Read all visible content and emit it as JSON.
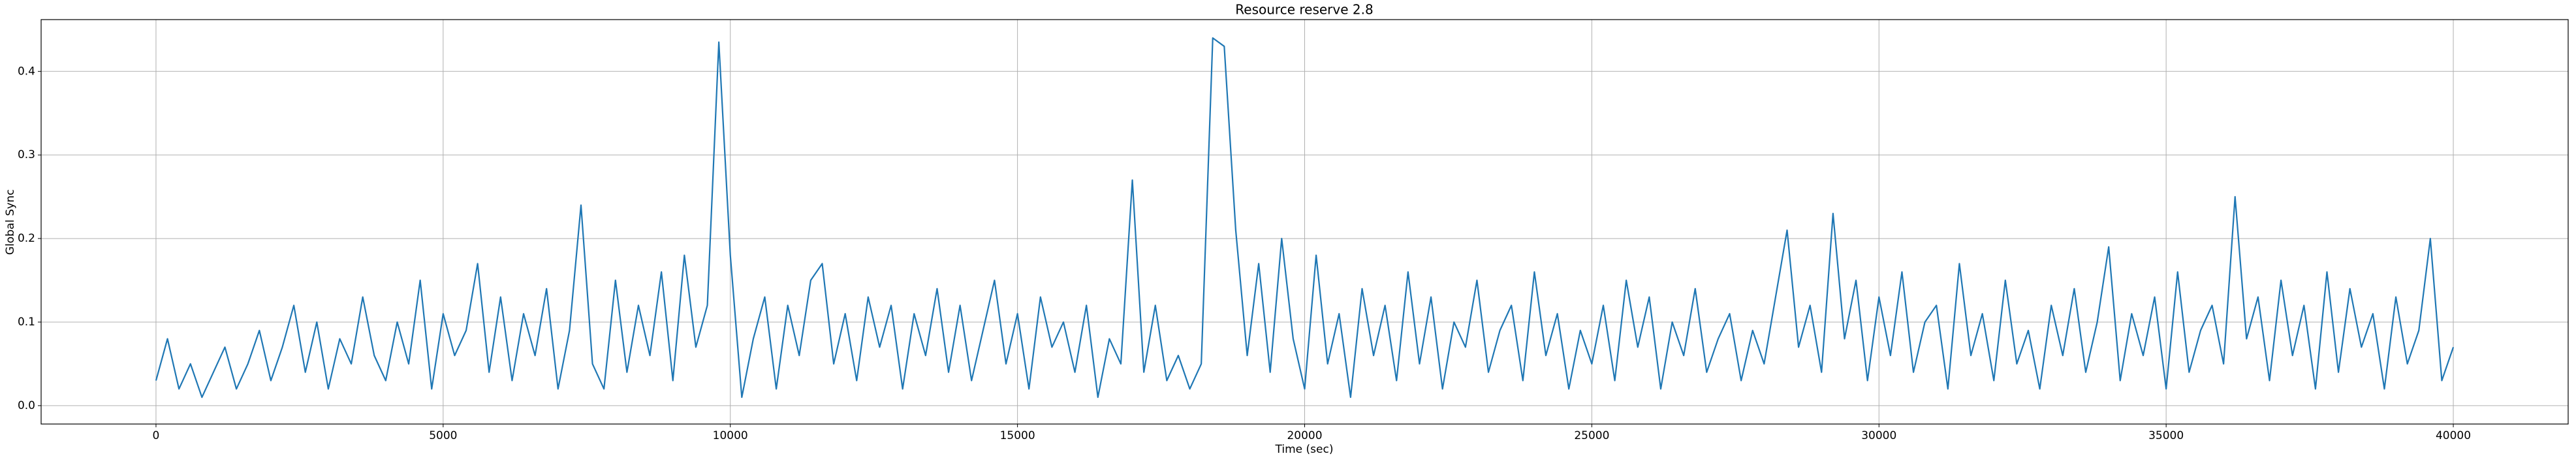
{
  "chart_data": {
    "type": "line",
    "title": "Resource reserve 2.8",
    "x_label": "Time (sec)",
    "y_label": "Global Sync",
    "x": [
      0,
      200,
      400,
      600,
      800,
      1000,
      1200,
      1400,
      1600,
      1800,
      2000,
      2200,
      2400,
      2600,
      2800,
      3000,
      3200,
      3400,
      3600,
      3800,
      4000,
      4200,
      4400,
      4600,
      4800,
      5000,
      5200,
      5400,
      5600,
      5800,
      6000,
      6200,
      6400,
      6600,
      6800,
      7000,
      7200,
      7400,
      7600,
      7800,
      8000,
      8200,
      8400,
      8600,
      8800,
      9000,
      9200,
      9400,
      9600,
      9800,
      10000,
      10200,
      10400,
      10600,
      10800,
      11000,
      11200,
      11400,
      11600,
      11800,
      12000,
      12200,
      12400,
      12600,
      12800,
      13000,
      13200,
      13400,
      13600,
      13800,
      14000,
      14200,
      14400,
      14600,
      14800,
      15000,
      15200,
      15400,
      15600,
      15800,
      16000,
      16200,
      16400,
      16600,
      16800,
      17000,
      17200,
      17400,
      17600,
      17800,
      18000,
      18200,
      18400,
      18600,
      18800,
      19000,
      19200,
      19400,
      19600,
      19800,
      20000,
      20200,
      20400,
      20600,
      20800,
      21000,
      21200,
      21400,
      21600,
      21800,
      22000,
      22200,
      22400,
      22600,
      22800,
      23000,
      23200,
      23400,
      23600,
      23800,
      24000,
      24200,
      24400,
      24600,
      24800,
      25000,
      25200,
      25400,
      25600,
      25800,
      26000,
      26200,
      26400,
      26600,
      26800,
      27000,
      27200,
      27400,
      27600,
      27800,
      28000,
      28200,
      28400,
      28600,
      28800,
      29000,
      29200,
      29400,
      29600,
      29800,
      30000,
      30200,
      30400,
      30600,
      30800,
      31000,
      31200,
      31400,
      31600,
      31800,
      32000,
      32200,
      32400,
      32600,
      32800,
      33000,
      33200,
      33400,
      33600,
      33800,
      34000,
      34200,
      34400,
      34600,
      34800,
      35000,
      35200,
      35400,
      35600,
      35800,
      36000,
      36200,
      36400,
      36600,
      36800,
      37000,
      37200,
      37400,
      37600,
      37800,
      38000,
      38200,
      38400,
      38600,
      38800,
      39000,
      39200,
      39400,
      39600,
      39800,
      40000
    ],
    "series": [
      {
        "color": "#1f77b4",
        "values": [
          0.03,
          0.08,
          0.02,
          0.05,
          0.01,
          0.04,
          0.07,
          0.02,
          0.05,
          0.09,
          0.03,
          0.07,
          0.12,
          0.04,
          0.1,
          0.02,
          0.08,
          0.05,
          0.13,
          0.06,
          0.03,
          0.1,
          0.05,
          0.15,
          0.02,
          0.11,
          0.06,
          0.09,
          0.17,
          0.04,
          0.13,
          0.03,
          0.11,
          0.06,
          0.14,
          0.02,
          0.09,
          0.24,
          0.05,
          0.02,
          0.15,
          0.04,
          0.12,
          0.06,
          0.16,
          0.03,
          0.18,
          0.07,
          0.12,
          0.435,
          0.18,
          0.01,
          0.08,
          0.13,
          0.02,
          0.12,
          0.06,
          0.15,
          0.17,
          0.05,
          0.11,
          0.03,
          0.13,
          0.07,
          0.12,
          0.02,
          0.11,
          0.06,
          0.14,
          0.04,
          0.12,
          0.03,
          0.09,
          0.15,
          0.05,
          0.11,
          0.02,
          0.13,
          0.07,
          0.1,
          0.04,
          0.12,
          0.01,
          0.08,
          0.05,
          0.27,
          0.04,
          0.12,
          0.03,
          0.06,
          0.02,
          0.05,
          0.44,
          0.43,
          0.21,
          0.06,
          0.17,
          0.04,
          0.2,
          0.08,
          0.02,
          0.18,
          0.05,
          0.11,
          0.01,
          0.14,
          0.06,
          0.12,
          0.03,
          0.16,
          0.05,
          0.13,
          0.02,
          0.1,
          0.07,
          0.15,
          0.04,
          0.09,
          0.12,
          0.03,
          0.16,
          0.06,
          0.11,
          0.02,
          0.09,
          0.05,
          0.12,
          0.03,
          0.15,
          0.07,
          0.13,
          0.02,
          0.1,
          0.06,
          0.14,
          0.04,
          0.08,
          0.11,
          0.03,
          0.09,
          0.05,
          0.13,
          0.21,
          0.07,
          0.12,
          0.04,
          0.23,
          0.08,
          0.15,
          0.03,
          0.13,
          0.06,
          0.16,
          0.04,
          0.1,
          0.12,
          0.02,
          0.17,
          0.06,
          0.11,
          0.03,
          0.15,
          0.05,
          0.09,
          0.02,
          0.12,
          0.06,
          0.14,
          0.04,
          0.1,
          0.19,
          0.03,
          0.11,
          0.06,
          0.13,
          0.02,
          0.16,
          0.04,
          0.09,
          0.12,
          0.05,
          0.25,
          0.08,
          0.13,
          0.03,
          0.15,
          0.06,
          0.12,
          0.02,
          0.16,
          0.04,
          0.14,
          0.07,
          0.11,
          0.02,
          0.13,
          0.05,
          0.09,
          0.2,
          0.03,
          0.07
        ]
      }
    ],
    "xlim": [
      -2000,
      42000
    ],
    "ylim": [
      -0.022,
      0.462
    ],
    "xticks": [
      0,
      5000,
      10000,
      15000,
      20000,
      25000,
      30000,
      35000,
      40000
    ],
    "yticks": [
      {
        "value": 0,
        "label": "0.0"
      },
      0.1,
      0.2,
      0.3,
      0.4
    ],
    "grid": true
  }
}
